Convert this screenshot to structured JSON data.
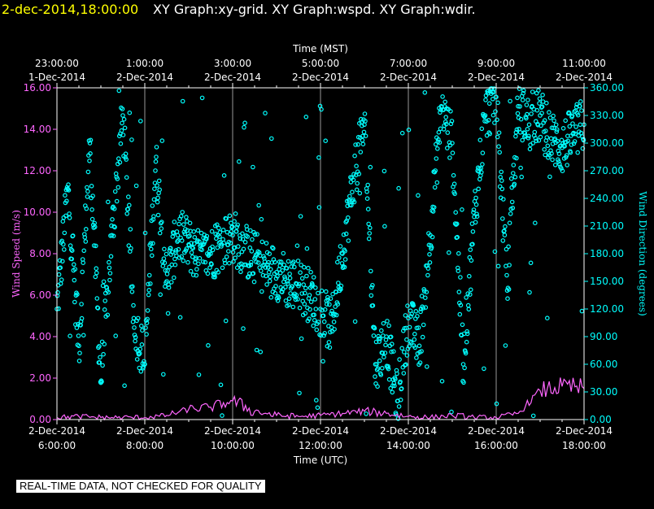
{
  "header": {
    "date": "2-dec-2014,18:00:00",
    "graphs": "XY Graph:xy-grid.  XY Graph:wspd.  XY Graph:wdir."
  },
  "notice": "REAL-TIME DATA, NOT CHECKED FOR QUALITY",
  "colors": {
    "wind_speed": "#ff66ff",
    "wind_direction": "#00ffff",
    "grid": "#ffffff",
    "background": "#000000"
  },
  "chart_data": {
    "type": "scatter",
    "title": "",
    "top_axis": {
      "label": "Time (MST)",
      "ticks": [
        {
          "time": "23:00:00",
          "date": "1-Dec-2014"
        },
        {
          "time": "1:00:00",
          "date": "2-Dec-2014"
        },
        {
          "time": "3:00:00",
          "date": "2-Dec-2014"
        },
        {
          "time": "5:00:00",
          "date": "2-Dec-2014"
        },
        {
          "time": "7:00:00",
          "date": "2-Dec-2014"
        },
        {
          "time": "9:00:00",
          "date": "2-Dec-2014"
        },
        {
          "time": "11:00:00",
          "date": "2-Dec-2014"
        }
      ]
    },
    "bottom_axis": {
      "label": "Time (UTC)",
      "range": [
        "2014-12-02T06:00",
        "2014-12-02T18:00"
      ],
      "ticks": [
        {
          "date": "2-Dec-2014",
          "time": "6:00:00"
        },
        {
          "date": "2-Dec-2014",
          "time": "8:00:00"
        },
        {
          "date": "2-Dec-2014",
          "time": "10:00:00"
        },
        {
          "date": "2-Dec-2014",
          "time": "12:00:00"
        },
        {
          "date": "2-Dec-2014",
          "time": "14:00:00"
        },
        {
          "date": "2-Dec-2014",
          "time": "16:00:00"
        },
        {
          "date": "2-Dec-2014",
          "time": "18:00:00"
        }
      ]
    },
    "left_axis": {
      "label": "Wind Speed (m/s)",
      "ylim": [
        0,
        16
      ],
      "ticks": [
        "0.00",
        "2.00",
        "4.00",
        "6.00",
        "8.00",
        "10.00",
        "12.00",
        "14.00",
        "16.00"
      ]
    },
    "right_axis": {
      "label": "Wind Direction (degrees)",
      "ylim": [
        0,
        360
      ],
      "ticks": [
        "0.00",
        "30.00",
        "60.00",
        "90.00",
        "120.00",
        "150.00",
        "180.00",
        "210.00",
        "240.00",
        "270.00",
        "300.00",
        "330.00",
        "360.00"
      ]
    },
    "grid": true,
    "series": [
      {
        "name": "Wind Speed",
        "axis": "left",
        "style": "line",
        "x": [
          "06:00",
          "06:30",
          "07:00",
          "07:30",
          "08:00",
          "08:30",
          "09:00",
          "09:30",
          "10:00",
          "10:30",
          "11:00",
          "11:30",
          "12:00",
          "12:30",
          "13:00",
          "13:30",
          "14:00",
          "14:30",
          "15:00",
          "15:30",
          "16:00",
          "16:30",
          "17:00",
          "17:30",
          "18:00"
        ],
        "values": [
          0.1,
          0.15,
          0.1,
          0.1,
          0.1,
          0.2,
          0.5,
          0.6,
          0.9,
          0.4,
          0.2,
          0.15,
          0.2,
          0.3,
          0.4,
          0.3,
          0.15,
          0.1,
          0.2,
          0.1,
          0.1,
          0.3,
          1.4,
          1.6,
          1.5
        ]
      },
      {
        "name": "Wind Direction",
        "axis": "right",
        "style": "points",
        "x": [
          "06:00",
          "06:15",
          "06:30",
          "06:45",
          "07:00",
          "07:15",
          "07:30",
          "07:45",
          "08:00",
          "08:15",
          "08:30",
          "08:45",
          "09:00",
          "09:15",
          "09:30",
          "09:45",
          "10:00",
          "10:15",
          "10:30",
          "10:45",
          "11:00",
          "11:15",
          "11:30",
          "11:45",
          "12:00",
          "12:15",
          "12:30",
          "12:45",
          "13:00",
          "13:15",
          "13:30",
          "13:45",
          "14:00",
          "14:15",
          "14:30",
          "14:45",
          "15:00",
          "15:15",
          "15:30",
          "15:45",
          "16:00",
          "16:15",
          "16:30",
          "16:45",
          "17:00",
          "17:15",
          "17:30",
          "17:45",
          "18:00"
        ],
        "values": [
          120,
          250,
          80,
          300,
          40,
          200,
          330,
          110,
          60,
          280,
          150,
          200,
          190,
          175,
          180,
          190,
          200,
          185,
          175,
          165,
          160,
          150,
          145,
          135,
          120,
          100,
          180,
          260,
          320,
          60,
          90,
          20,
          110,
          80,
          200,
          340,
          300,
          60,
          220,
          330,
          350,
          140,
          340,
          320,
          330,
          305,
          295,
          310,
          320
        ]
      }
    ]
  }
}
